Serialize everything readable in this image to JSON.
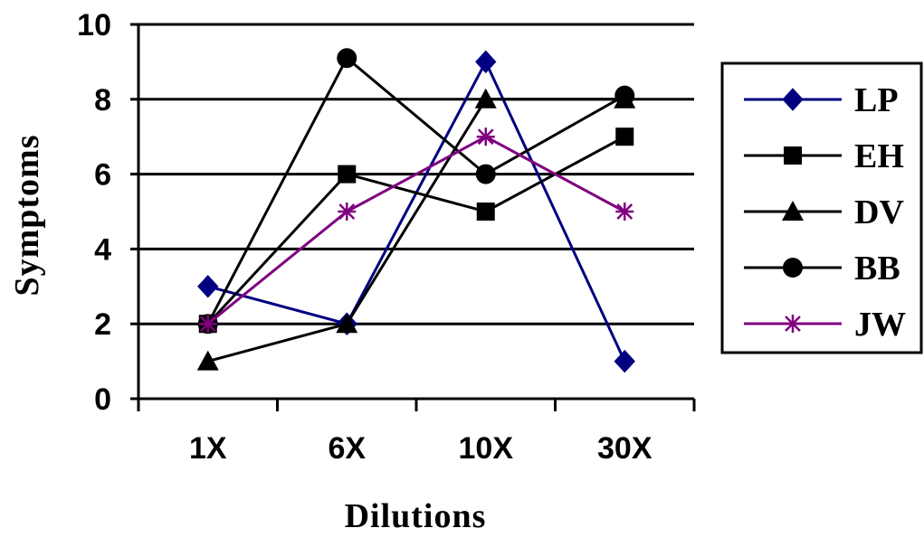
{
  "chart_data": {
    "type": "line",
    "xlabel": "Dilutions",
    "ylabel": "Symptoms",
    "categories": [
      "1X",
      "6X",
      "10X",
      "30X"
    ],
    "ylim": [
      0,
      10
    ],
    "yticks": [
      0,
      2,
      4,
      6,
      8,
      10
    ],
    "grid": "horizontal",
    "legend_position": "right",
    "series": [
      {
        "name": "LP",
        "values": [
          3,
          2,
          9,
          1
        ],
        "color": "#000080",
        "marker": "diamond"
      },
      {
        "name": "EH",
        "values": [
          2,
          6,
          5,
          7
        ],
        "color": "#000000",
        "marker": "square"
      },
      {
        "name": "DV",
        "values": [
          1,
          2,
          8,
          8
        ],
        "color": "#000000",
        "marker": "triangle"
      },
      {
        "name": "BB",
        "values": [
          2,
          9.1,
          6,
          8.1
        ],
        "color": "#000000",
        "marker": "circle"
      },
      {
        "name": "JW",
        "values": [
          2,
          5,
          7,
          5
        ],
        "color": "#800080",
        "marker": "star"
      }
    ]
  }
}
